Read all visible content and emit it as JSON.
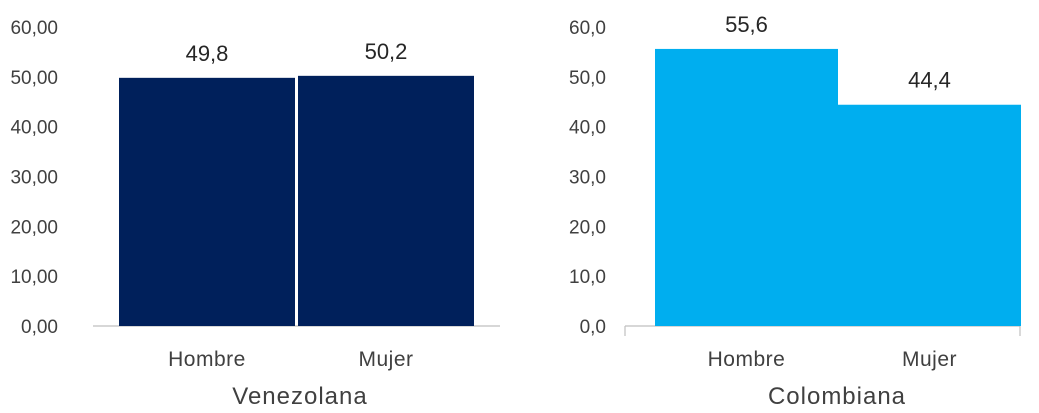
{
  "chart_data": [
    {
      "type": "bar",
      "group_label": "Venezolana",
      "categories": [
        "Hombre",
        "Mujer"
      ],
      "values": [
        49.8,
        50.2
      ],
      "value_labels": [
        "49,8",
        "50,2"
      ],
      "ylim": [
        0,
        60
      ],
      "y_ticks": [
        "0,00",
        "10,00",
        "20,00",
        "30,00",
        "40,00",
        "50,00",
        "60,00"
      ],
      "bar_color": "#00205B",
      "grid": false,
      "legend": "none"
    },
    {
      "type": "bar",
      "group_label": "Colombiana",
      "categories": [
        "Hombre",
        "Mujer"
      ],
      "values": [
        55.6,
        44.4
      ],
      "value_labels": [
        "55,6",
        "44,4"
      ],
      "ylim": [
        0,
        60
      ],
      "y_ticks": [
        "0,0",
        "10,0",
        "20,0",
        "30,0",
        "40,0",
        "50,0",
        "60,0"
      ],
      "bar_color": "#00AEEF",
      "grid": false,
      "legend": "none"
    }
  ]
}
